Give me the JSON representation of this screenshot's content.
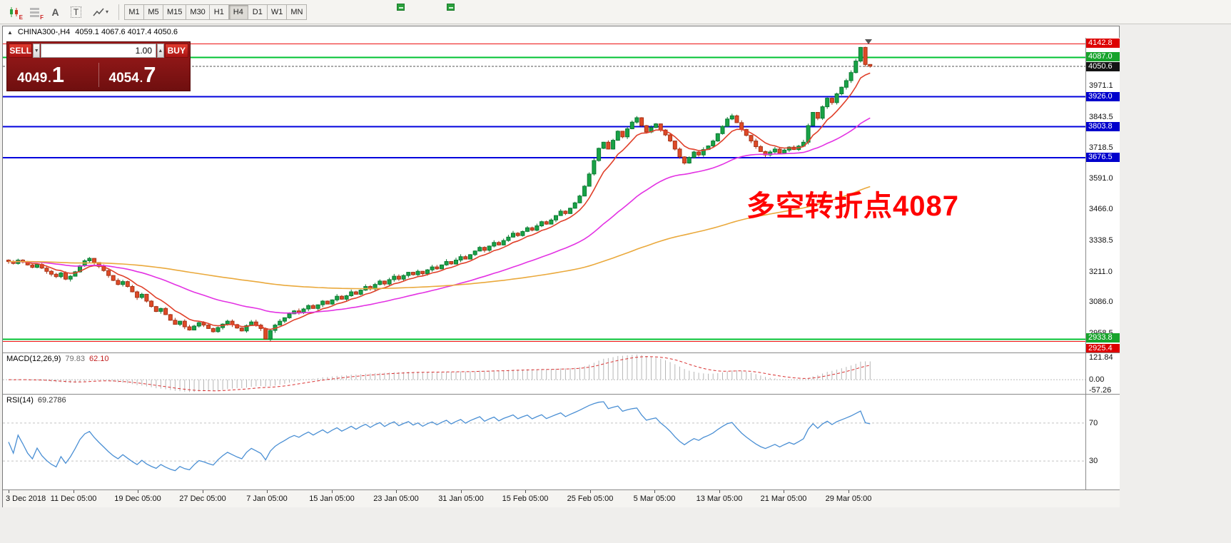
{
  "toolbar": {
    "icon1_sub": "E",
    "icon2_sub": "F",
    "a_label": "A",
    "t_label": "T",
    "chevron": "▾",
    "timeframes": [
      {
        "label": "M1",
        "active": false
      },
      {
        "label": "M5",
        "active": false
      },
      {
        "label": "M15",
        "active": false
      },
      {
        "label": "M30",
        "active": false
      },
      {
        "label": "H1",
        "active": false
      },
      {
        "label": "H4",
        "active": true
      },
      {
        "label": "D1",
        "active": false
      },
      {
        "label": "W1",
        "active": false
      },
      {
        "label": "MN",
        "active": false
      }
    ]
  },
  "chart": {
    "header": {
      "collapse": "▲",
      "symbol": "CHINA300-,H4",
      "ohlc": "4059.1 4067.6 4017.4 4050.6"
    },
    "trade_panel": {
      "sell": "SELL",
      "buy": "BUY",
      "volume": "1.00",
      "spin_down": "▼",
      "spin_up": "▲",
      "bid_big": "4049",
      "bid_pip": "1",
      "ask_big": "4054",
      "ask_pip": "7"
    },
    "annotation": {
      "text": "多空转折点4087",
      "color": "#ff0000"
    },
    "axis_ticks": [
      "3971.1",
      "3843.5",
      "3718.5",
      "3591.0",
      "3466.0",
      "3338.5",
      "3211.0",
      "3086.0",
      "2958.5"
    ],
    "price_lines": [
      {
        "label": "4142.8",
        "price": 4142.8,
        "line_color": "#ee1111",
        "box_color": "#dd0000",
        "width": 1,
        "dash": "",
        "label_dy": 0
      },
      {
        "label": "4087.0",
        "price": 4087.0,
        "line_color": "#00c232",
        "box_color": "#18a42c",
        "width": 2,
        "dash": "",
        "label_dy": 0
      },
      {
        "label": "4050.6",
        "price": 4050.6,
        "line_color": "#555555",
        "box_color": "#141414",
        "width": 1,
        "dash": "3,2",
        "label_dy": 1
      },
      {
        "label": "3926.0",
        "price": 3926.0,
        "line_color": "#0000dd",
        "box_color": "#0000cc",
        "width": 2,
        "dash": "",
        "label_dy": 0
      },
      {
        "label": "3803.8",
        "price": 3803.8,
        "line_color": "#0000dd",
        "box_color": "#0000cc",
        "width": 2,
        "dash": "",
        "label_dy": 0
      },
      {
        "label": "3676.5",
        "price": 3676.5,
        "line_color": "#0000dd",
        "box_color": "#0000cc",
        "width": 2,
        "dash": "",
        "label_dy": 0
      },
      {
        "label": "2933.8",
        "price": 2933.8,
        "line_color": "#00c232",
        "box_color": "#18a42c",
        "width": 2,
        "dash": "",
        "label_dy": -2
      },
      {
        "label": "2925.4",
        "price": 2925.4,
        "line_color": "#ee1111",
        "box_color": "#dd0000",
        "width": 1,
        "dash": "",
        "label_dy": 11
      }
    ]
  },
  "macd": {
    "title": "MACD(12,26,9)",
    "main_value": "79.83",
    "signal_value": "62.10",
    "ticks": [
      {
        "label": "121.84",
        "value": 121.84
      },
      {
        "label": "0.00",
        "value": 0.0
      },
      {
        "label": "-57.26",
        "value": -57.26
      }
    ]
  },
  "rsi": {
    "title": "RSI(14)",
    "value": "69.2786",
    "levels": [
      {
        "label": "70",
        "value": 70
      },
      {
        "label": "30",
        "value": 30
      }
    ]
  },
  "time_axis": {
    "labels": [
      "3 Dec 2018",
      "11 Dec 05:00",
      "19 Dec 05:00",
      "27 Dec 05:00",
      "7 Jan 05:00",
      "15 Jan 05:00",
      "23 Jan 05:00",
      "31 Jan 05:00",
      "15 Feb 05:00",
      "25 Feb 05:00",
      "5 Mar 05:00",
      "13 Mar 05:00",
      "21 Mar 05:00",
      "29 Mar 05:00"
    ]
  },
  "chart_data": {
    "type": "candlestick",
    "symbol": "CHINA300-",
    "timeframe": "H4",
    "title": "CHINA300-,H4",
    "current_ohlc": {
      "open": 4059.1,
      "high": 4067.6,
      "low": 4017.4,
      "close": 4050.6
    },
    "ylim": [
      2880,
      4167
    ],
    "closes": [
      3252,
      3244,
      3258,
      3250,
      3238,
      3228,
      3240,
      3225,
      3212,
      3200,
      3190,
      3205,
      3180,
      3192,
      3210,
      3235,
      3255,
      3265,
      3248,
      3232,
      3215,
      3195,
      3175,
      3158,
      3170,
      3150,
      3128,
      3105,
      3118,
      3090,
      3068,
      3048,
      3060,
      3035,
      3012,
      2995,
      3008,
      2985,
      2972,
      2988,
      3002,
      2992,
      2978,
      2965,
      2982,
      2996,
      3008,
      2994,
      2980,
      2968,
      2990,
      3005,
      2992,
      2978,
      2935,
      2970,
      2992,
      3008,
      3022,
      3038,
      3050,
      3042,
      3058,
      3072,
      3060,
      3075,
      3090,
      3078,
      3095,
      3110,
      3098,
      3112,
      3128,
      3118,
      3135,
      3150,
      3140,
      3158,
      3172,
      3160,
      3178,
      3192,
      3180,
      3195,
      3208,
      3198,
      3212,
      3202,
      3218,
      3230,
      3222,
      3238,
      3252,
      3242,
      3258,
      3272,
      3262,
      3280,
      3295,
      3310,
      3298,
      3315,
      3330,
      3320,
      3338,
      3352,
      3368,
      3358,
      3375,
      3390,
      3380,
      3398,
      3415,
      3405,
      3422,
      3440,
      3458,
      3448,
      3470,
      3492,
      3520,
      3560,
      3610,
      3665,
      3715,
      3740,
      3712,
      3748,
      3785,
      3762,
      3795,
      3822,
      3840,
      3808,
      3782,
      3800,
      3815,
      3790,
      3770,
      3745,
      3712,
      3680,
      3655,
      3678,
      3700,
      3688,
      3710,
      3725,
      3745,
      3775,
      3805,
      3835,
      3848,
      3820,
      3792,
      3768,
      3745,
      3722,
      3702,
      3688,
      3700,
      3712,
      3695,
      3708,
      3720,
      3710,
      3724,
      3740,
      3808,
      3862,
      3838,
      3885,
      3920,
      3902,
      3938,
      3965,
      3992,
      4025,
      4072,
      4128,
      4058,
      4050.6
    ],
    "up_color": "#18a346",
    "down_color": "#df4a27",
    "overlays": [
      {
        "name": "fast-ma",
        "period": 8,
        "color": "#e0402a"
      },
      {
        "name": "mid-ma",
        "period": 40,
        "color": "#e332e3"
      },
      {
        "name": "slow-ma",
        "period": 144,
        "color": "#eaa93c"
      }
    ],
    "indicators": [
      {
        "name": "MACD",
        "params": [
          12,
          26,
          9
        ],
        "values": [
          79.83,
          62.1
        ],
        "scale": [
          121.84,
          0.0,
          -57.26
        ]
      },
      {
        "name": "RSI",
        "params": [
          14
        ],
        "value": 69.2786,
        "levels": [
          70,
          30
        ]
      }
    ]
  }
}
